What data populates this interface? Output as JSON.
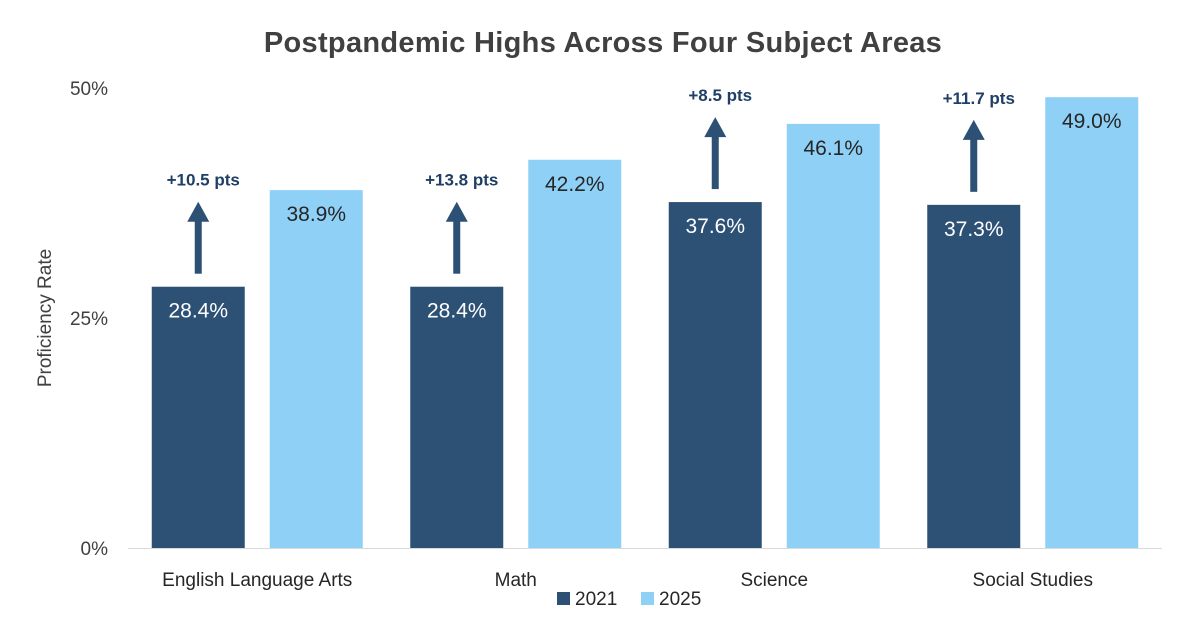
{
  "chart_data": {
    "type": "bar",
    "title": "Postpandemic Highs Across Four Subject Areas",
    "xlabel": "",
    "ylabel": "Proficiency Rate",
    "ylim": [
      0,
      50
    ],
    "yticks": [
      0,
      25,
      50
    ],
    "ytick_labels": [
      "0%",
      "25%",
      "50%"
    ],
    "categories": [
      "English Language Arts",
      "Math",
      "Science",
      "Social Studies"
    ],
    "series": [
      {
        "name": "2021",
        "color": "#2d5175",
        "values": [
          28.4,
          28.4,
          37.6,
          37.3
        ],
        "labels": [
          "28.4%",
          "28.4%",
          "37.6%",
          "37.3%"
        ]
      },
      {
        "name": "2025",
        "color": "#8fd0f7",
        "values": [
          38.9,
          42.2,
          46.1,
          49.0
        ],
        "labels": [
          "38.9%",
          "42.2%",
          "46.1%",
          "49.0%"
        ]
      }
    ],
    "annotations": [
      "+10.5 pts",
      "+13.8 pts",
      "+8.5 pts",
      "+11.7 pts"
    ],
    "annotation_color": "#2d5175",
    "grid": false,
    "legend_position": "bottom"
  }
}
